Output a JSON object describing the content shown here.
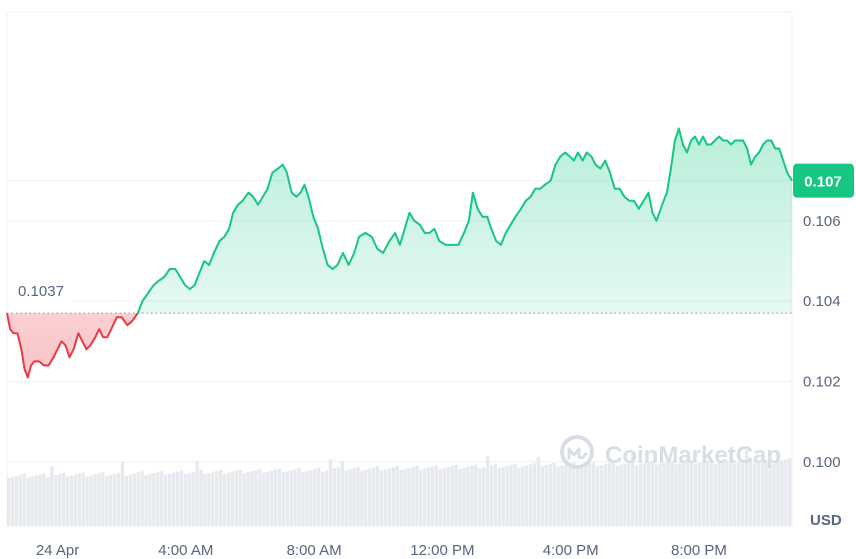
{
  "chart_data": {
    "type": "area",
    "watermark": "CoinMarketCap",
    "unit_label": "USD",
    "current_price_label": "0.107",
    "reference_label": "0.1037",
    "reference_value": 0.1037,
    "ylim": [
      0.0984,
      0.1112
    ],
    "y_ticks": [
      {
        "value": 0.1,
        "label": "0.100"
      },
      {
        "value": 0.102,
        "label": "0.102"
      },
      {
        "value": 0.104,
        "label": "0.104"
      },
      {
        "value": 0.106,
        "label": "0.106"
      },
      {
        "value": 0.107,
        "label": "0.107"
      }
    ],
    "xlim": [
      -6.3,
      91.6
    ],
    "x_ticks": [
      {
        "value": 0,
        "label": "24 Apr"
      },
      {
        "value": 16,
        "label": "4:00 AM"
      },
      {
        "value": 32,
        "label": "8:00 AM"
      },
      {
        "value": 48,
        "label": "12:00 PM"
      },
      {
        "value": 64,
        "label": "4:00 PM"
      },
      {
        "value": 80,
        "label": "8:00 PM"
      }
    ],
    "x_unit": "15-minute intervals since 24 Apr 00:00",
    "series": [
      {
        "points": [
          [
            -6.3,
            0.1037
          ],
          [
            -5.9,
            0.1033
          ],
          [
            -5.5,
            0.1032
          ],
          [
            -5.0,
            0.1032
          ],
          [
            -4.5,
            0.1028
          ],
          [
            -4.1,
            0.1023
          ],
          [
            -3.7,
            0.1021
          ],
          [
            -3.3,
            0.1024
          ],
          [
            -2.9,
            0.1025
          ],
          [
            -2.3,
            0.1025
          ],
          [
            -1.7,
            0.1024
          ],
          [
            -1.1,
            0.1024
          ],
          [
            -0.5,
            0.1026
          ],
          [
            0.0,
            0.1028
          ],
          [
            0.5,
            0.103
          ],
          [
            1.0,
            0.1029
          ],
          [
            1.5,
            0.1026
          ],
          [
            2.0,
            0.1028
          ],
          [
            2.6,
            0.1032
          ],
          [
            3.1,
            0.103
          ],
          [
            3.6,
            0.1028
          ],
          [
            4.1,
            0.1029
          ],
          [
            4.7,
            0.1031
          ],
          [
            5.2,
            0.1033
          ],
          [
            5.7,
            0.1031
          ],
          [
            6.2,
            0.1031
          ],
          [
            6.7,
            0.1033
          ],
          [
            7.4,
            0.1036
          ],
          [
            8.0,
            0.1036
          ],
          [
            8.7,
            0.1034
          ],
          [
            9.3,
            0.1035
          ],
          [
            10.0,
            0.1037
          ],
          [
            10.6,
            0.104
          ],
          [
            11.3,
            0.1042
          ],
          [
            12.0,
            0.1044
          ],
          [
            12.6,
            0.1045
          ],
          [
            13.3,
            0.1046
          ],
          [
            14.0,
            0.1048
          ],
          [
            14.7,
            0.1048
          ],
          [
            15.3,
            0.1046
          ],
          [
            15.9,
            0.1044
          ],
          [
            16.5,
            0.1043
          ],
          [
            17.1,
            0.1044
          ],
          [
            17.7,
            0.1047
          ],
          [
            18.3,
            0.105
          ],
          [
            18.9,
            0.1049
          ],
          [
            19.5,
            0.1052
          ],
          [
            20.2,
            0.1055
          ],
          [
            20.8,
            0.1056
          ],
          [
            21.4,
            0.1058
          ],
          [
            21.9,
            0.1062
          ],
          [
            22.5,
            0.1064
          ],
          [
            23.1,
            0.1065
          ],
          [
            23.8,
            0.1067
          ],
          [
            24.4,
            0.1066
          ],
          [
            25.0,
            0.1064
          ],
          [
            25.6,
            0.1066
          ],
          [
            26.2,
            0.1068
          ],
          [
            26.8,
            0.1072
          ],
          [
            27.5,
            0.1073
          ],
          [
            28.1,
            0.1074
          ],
          [
            28.6,
            0.1072
          ],
          [
            29.2,
            0.1067
          ],
          [
            29.8,
            0.1066
          ],
          [
            30.3,
            0.1067
          ],
          [
            30.8,
            0.1069
          ],
          [
            31.3,
            0.1066
          ],
          [
            31.9,
            0.1061
          ],
          [
            32.5,
            0.1058
          ],
          [
            33.1,
            0.1053
          ],
          [
            33.7,
            0.1049
          ],
          [
            34.3,
            0.1048
          ],
          [
            34.9,
            0.1049
          ],
          [
            35.6,
            0.1052
          ],
          [
            36.3,
            0.1049
          ],
          [
            37.0,
            0.1052
          ],
          [
            37.6,
            0.1056
          ],
          [
            38.4,
            0.1057
          ],
          [
            39.2,
            0.1056
          ],
          [
            39.9,
            0.1053
          ],
          [
            40.6,
            0.1052
          ],
          [
            41.4,
            0.1055
          ],
          [
            42.1,
            0.1057
          ],
          [
            42.7,
            0.1054
          ],
          [
            43.3,
            0.1058
          ],
          [
            43.9,
            0.1062
          ],
          [
            44.5,
            0.106
          ],
          [
            45.2,
            0.1059
          ],
          [
            45.8,
            0.1057
          ],
          [
            46.4,
            0.1057
          ],
          [
            47.0,
            0.1058
          ],
          [
            47.6,
            0.1055
          ],
          [
            48.4,
            0.1054
          ],
          [
            49.2,
            0.1054
          ],
          [
            50.0,
            0.1054
          ],
          [
            50.7,
            0.1057
          ],
          [
            51.3,
            0.106
          ],
          [
            51.8,
            0.1067
          ],
          [
            52.4,
            0.1063
          ],
          [
            53.0,
            0.1061
          ],
          [
            53.6,
            0.1061
          ],
          [
            54.1,
            0.1058
          ],
          [
            54.7,
            0.1055
          ],
          [
            55.3,
            0.1054
          ],
          [
            55.9,
            0.1057
          ],
          [
            56.5,
            0.1059
          ],
          [
            57.1,
            0.1061
          ],
          [
            57.8,
            0.1063
          ],
          [
            58.4,
            0.1065
          ],
          [
            59.0,
            0.1066
          ],
          [
            59.6,
            0.1068
          ],
          [
            60.2,
            0.1068
          ],
          [
            60.8,
            0.1069
          ],
          [
            61.5,
            0.107
          ],
          [
            62.1,
            0.1074
          ],
          [
            62.7,
            0.1076
          ],
          [
            63.3,
            0.1077
          ],
          [
            63.9,
            0.1076
          ],
          [
            64.4,
            0.1075
          ],
          [
            64.9,
            0.1077
          ],
          [
            65.5,
            0.1075
          ],
          [
            66.0,
            0.1077
          ],
          [
            66.6,
            0.1076
          ],
          [
            67.1,
            0.1074
          ],
          [
            67.7,
            0.1073
          ],
          [
            68.3,
            0.1075
          ],
          [
            68.9,
            0.1072
          ],
          [
            69.5,
            0.1068
          ],
          [
            70.1,
            0.1068
          ],
          [
            70.7,
            0.1066
          ],
          [
            71.3,
            0.1065
          ],
          [
            71.9,
            0.1065
          ],
          [
            72.5,
            0.1063
          ],
          [
            73.1,
            0.1065
          ],
          [
            73.7,
            0.1067
          ],
          [
            74.2,
            0.1062
          ],
          [
            74.7,
            0.106
          ],
          [
            75.4,
            0.1064
          ],
          [
            76.0,
            0.1067
          ],
          [
            76.5,
            0.1073
          ],
          [
            77.0,
            0.108
          ],
          [
            77.5,
            0.1083
          ],
          [
            78.0,
            0.1079
          ],
          [
            78.5,
            0.1077
          ],
          [
            79.0,
            0.108
          ],
          [
            79.5,
            0.1081
          ],
          [
            80.0,
            0.1079
          ],
          [
            80.5,
            0.1081
          ],
          [
            81.0,
            0.1079
          ],
          [
            81.5,
            0.1079
          ],
          [
            82.0,
            0.108
          ],
          [
            82.5,
            0.1081
          ],
          [
            83.0,
            0.108
          ],
          [
            83.5,
            0.108
          ],
          [
            84.0,
            0.1079
          ],
          [
            84.5,
            0.108
          ],
          [
            85.0,
            0.108
          ],
          [
            85.5,
            0.108
          ],
          [
            86.0,
            0.1078
          ],
          [
            86.5,
            0.1074
          ],
          [
            87.0,
            0.1076
          ],
          [
            87.5,
            0.1077
          ],
          [
            88.0,
            0.1079
          ],
          [
            88.5,
            0.108
          ],
          [
            89.0,
            0.108
          ],
          [
            89.5,
            0.1078
          ],
          [
            90.0,
            0.1078
          ],
          [
            90.5,
            0.1075
          ],
          [
            91.0,
            0.1072
          ],
          [
            91.6,
            0.107
          ]
        ]
      }
    ],
    "colors": {
      "up": "#16c784",
      "down": "#ea3943",
      "grid": "#eff2f5",
      "volume": "#e6e9ee",
      "axis_text": "#58667e",
      "watermark": "#d9dde4"
    }
  }
}
